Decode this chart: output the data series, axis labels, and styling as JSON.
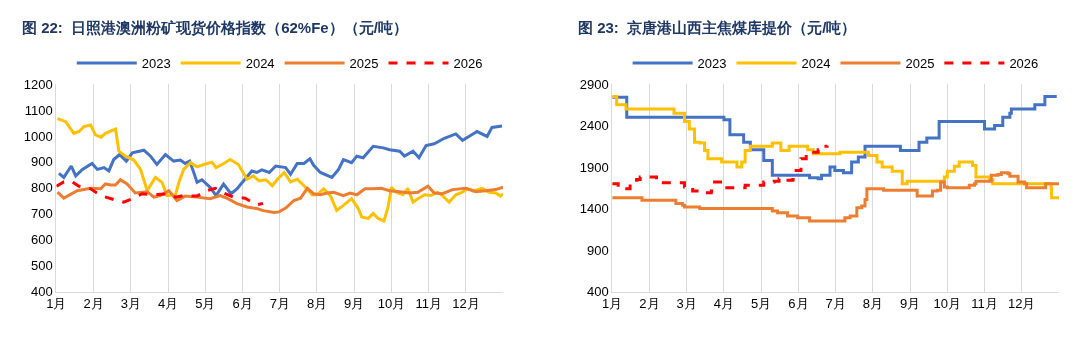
{
  "chart_data": [
    {
      "type": "line",
      "title": "图 22:  日照港澳洲粉矿现货价格指数（62%Fe）（元/吨）",
      "legend": "top",
      "grid": "x",
      "marker": "none",
      "line_style": "solid",
      "xlim": [
        1,
        13
      ],
      "xticks": [
        {
          "value": 1,
          "label": "1月"
        },
        {
          "value": 2,
          "label": "2月"
        },
        {
          "value": 3,
          "label": "3月"
        },
        {
          "value": 4,
          "label": "4月"
        },
        {
          "value": 5,
          "label": "5月"
        },
        {
          "value": 6,
          "label": "6月"
        },
        {
          "value": 7,
          "label": "7月"
        },
        {
          "value": 8,
          "label": "8月"
        },
        {
          "value": 9,
          "label": "9月"
        },
        {
          "value": 10,
          "label": "10月"
        },
        {
          "value": 11,
          "label": "11月"
        },
        {
          "value": 12,
          "label": "12月"
        }
      ],
      "ylim": [
        400,
        1200
      ],
      "yticks": [
        400,
        500,
        600,
        700,
        800,
        900,
        1000,
        1100,
        1200
      ],
      "series": [
        {
          "name": "2023",
          "color": "#4472c4",
          "x": [
            1.07,
            1.2,
            1.4,
            1.52,
            1.7,
            1.96,
            2.1,
            2.28,
            2.41,
            2.54,
            2.7,
            2.88,
            3.04,
            3.35,
            3.53,
            3.7,
            3.93,
            4.15,
            4.33,
            4.46,
            4.58,
            4.69,
            4.78,
            4.91,
            5.13,
            5.29,
            5.49,
            5.69,
            5.85,
            6.03,
            6.25,
            6.38,
            6.52,
            6.72,
            6.89,
            7.16,
            7.29,
            7.47,
            7.65,
            7.81,
            7.91,
            8.09,
            8.4,
            8.58,
            8.71,
            8.93,
            9.07,
            9.24,
            9.51,
            9.78,
            9.95,
            10.22,
            10.35,
            10.58,
            10.74,
            10.93,
            11.15,
            11.42,
            11.73,
            11.91,
            12.08,
            12.3,
            12.57,
            12.7,
            12.97
          ],
          "values": [
            856,
            840,
            884,
            846,
            871,
            894,
            871,
            878,
            865,
            909,
            928,
            903,
            935,
            945,
            922,
            890,
            928,
            903,
            907,
            894,
            903,
            859,
            821,
            831,
            802,
            770,
            814,
            777,
            796,
            827,
            865,
            859,
            869,
            859,
            884,
            878,
            852,
            894,
            894,
            912,
            887,
            859,
            840,
            871,
            909,
            897,
            922,
            916,
            960,
            954,
            947,
            941,
            922,
            941,
            916,
            963,
            970,
            991,
            1008,
            983,
            998,
            1017,
            998,
            1033,
            1038
          ]
        },
        {
          "name": "2024",
          "color": "#ffc000",
          "x": [
            1.03,
            1.25,
            1.47,
            1.61,
            1.74,
            1.92,
            2.05,
            2.2,
            2.32,
            2.59,
            2.68,
            2.86,
            3.08,
            3.26,
            3.44,
            3.66,
            3.84,
            3.97,
            4.2,
            4.29,
            4.42,
            4.6,
            4.78,
            4.96,
            5.18,
            5.29,
            5.45,
            5.67,
            5.89,
            6.12,
            6.29,
            6.45,
            6.63,
            6.8,
            6.94,
            7.12,
            7.29,
            7.47,
            7.69,
            7.87,
            8.0,
            8.18,
            8.36,
            8.53,
            8.71,
            8.93,
            9.11,
            9.2,
            9.38,
            9.51,
            9.64,
            9.8,
            9.91,
            10.0,
            10.13,
            10.31,
            10.44,
            10.58,
            10.71,
            10.89,
            11.06,
            11.24,
            11.37,
            11.55,
            11.73,
            11.91,
            12.04,
            12.21,
            12.44,
            12.62,
            12.8,
            12.93,
            13.0
          ],
          "values": [
            1067,
            1055,
            1010,
            1017,
            1036,
            1042,
            1004,
            995,
            1010,
            1026,
            941,
            922,
            907,
            871,
            789,
            840,
            821,
            770,
            773,
            821,
            871,
            897,
            881,
            890,
            899,
            878,
            890,
            909,
            890,
            833,
            846,
            827,
            831,
            808,
            833,
            859,
            823,
            833,
            802,
            773,
            773,
            796,
            770,
            713,
            732,
            758,
            720,
            688,
            682,
            701,
            682,
            672,
            726,
            802,
            783,
            773,
            798,
            745,
            758,
            773,
            770,
            783,
            770,
            745,
            773,
            783,
            796,
            789,
            798,
            783,
            780,
            768,
            777
          ]
        },
        {
          "name": "2025",
          "color": "#ed7d31",
          "x": [
            1.03,
            1.2,
            1.56,
            1.92,
            2.19,
            2.32,
            2.46,
            2.59,
            2.72,
            2.9,
            3.12,
            3.44,
            3.62,
            3.79,
            4.02,
            4.24,
            4.46,
            4.78,
            5.13,
            5.4,
            5.58,
            5.85,
            6.12,
            6.38,
            6.56,
            6.85,
            6.98,
            7.16,
            7.38,
            7.56,
            7.74,
            7.91,
            8.09,
            8.27,
            8.45,
            8.71,
            8.89,
            9.07,
            9.29,
            9.51,
            9.73,
            9.95,
            10.22,
            10.49,
            10.71,
            10.98,
            11.15,
            11.37,
            11.64,
            12.0,
            12.26,
            12.53,
            12.8,
            13.0
          ],
          "values": [
            783,
            760,
            789,
            798,
            796,
            815,
            811,
            811,
            831,
            815,
            780,
            785,
            764,
            770,
            789,
            751,
            768,
            764,
            758,
            770,
            760,
            739,
            726,
            720,
            712,
            705,
            707,
            722,
            751,
            760,
            798,
            777,
            773,
            780,
            783,
            770,
            780,
            773,
            796,
            796,
            798,
            789,
            785,
            780,
            783,
            806,
            780,
            777,
            793,
            798,
            785,
            789,
            793,
            802
          ]
        },
        {
          "name": "2026",
          "color": "#ff0000",
          "line_style": "dashed",
          "x": [
            1.0,
            1.2,
            1.38,
            1.61,
            1.92,
            2.19,
            2.54,
            2.81,
            3.08,
            3.3,
            3.62,
            3.97,
            4.2,
            4.42,
            4.78,
            5.04,
            5.27,
            5.49,
            5.76,
            6.07,
            6.25,
            6.4,
            6.55
          ],
          "values": [
            806,
            823,
            827,
            806,
            796,
            770,
            755,
            745,
            760,
            777,
            773,
            777,
            764,
            770,
            768,
            789,
            798,
            780,
            764,
            760,
            745,
            735,
            740
          ]
        }
      ]
    },
    {
      "type": "step",
      "title": "图 23:  京唐港山西主焦煤库提价（元/吨）",
      "legend": "top",
      "grid": "x",
      "marker": "none",
      "line_style": "solid",
      "xlim": [
        1,
        13
      ],
      "xticks": [
        {
          "value": 1,
          "label": "1月"
        },
        {
          "value": 2,
          "label": "2月"
        },
        {
          "value": 3,
          "label": "3月"
        },
        {
          "value": 4,
          "label": "4月"
        },
        {
          "value": 5,
          "label": "5月"
        },
        {
          "value": 6,
          "label": "6月"
        },
        {
          "value": 7,
          "label": "7月"
        },
        {
          "value": 8,
          "label": "8月"
        },
        {
          "value": 9,
          "label": "9月"
        },
        {
          "value": 10,
          "label": "10月"
        },
        {
          "value": 11,
          "label": "11月"
        },
        {
          "value": 12,
          "label": "12月"
        }
      ],
      "ylim": [
        400,
        2900
      ],
      "yticks": [
        400,
        900,
        1400,
        1900,
        2400,
        2900
      ],
      "series": [
        {
          "name": "2023",
          "color": "#4472c4",
          "x": [
            1.0,
            1.39,
            4.0,
            4.16,
            4.53,
            4.71,
            5.07,
            5.3,
            6.3,
            6.53,
            6.62,
            6.85,
            6.98,
            7.21,
            7.43,
            7.61,
            7.79,
            8.74,
            9.24,
            9.45,
            9.78,
            11.0,
            11.27,
            11.49,
            11.68,
            11.72,
            12.35,
            12.62,
            12.94
          ],
          "values": [
            2740,
            2500,
            2470,
            2290,
            2200,
            2110,
            1980,
            1800,
            1770,
            1760,
            1800,
            1900,
            1860,
            1830,
            1960,
            2020,
            2150,
            2100,
            2200,
            2250,
            2450,
            2360,
            2400,
            2500,
            2550,
            2600,
            2650,
            2750,
            2750
          ]
        },
        {
          "name": "2024",
          "color": "#ffc000",
          "x": [
            1.0,
            1.12,
            1.37,
            2.66,
            2.94,
            3.07,
            3.21,
            3.35,
            3.48,
            3.57,
            3.94,
            4.35,
            4.48,
            4.57,
            4.71,
            5.3,
            5.53,
            5.75,
            6.25,
            6.4,
            7.12,
            7.88,
            8.11,
            8.25,
            8.52,
            8.79,
            8.92,
            9.92,
            10.0,
            10.19,
            10.32,
            10.68,
            10.77,
            11.13,
            11.22,
            12.79,
            12.8,
            13.0
          ],
          "values": [
            2750,
            2650,
            2600,
            2550,
            2450,
            2360,
            2200,
            2190,
            2100,
            2000,
            1960,
            1900,
            1960,
            2100,
            2150,
            2190,
            2100,
            2150,
            2110,
            2060,
            2080,
            2040,
            1960,
            1900,
            1850,
            1700,
            1730,
            1780,
            1850,
            1910,
            1960,
            1920,
            1780,
            1750,
            1700,
            1640,
            1530,
            1530
          ]
        },
        {
          "name": "2025",
          "color": "#ed7d31",
          "x": [
            1.0,
            1.8,
            2.71,
            2.89,
            2.94,
            3.35,
            5.3,
            5.44,
            5.71,
            5.98,
            6.3,
            7.25,
            7.39,
            7.57,
            7.7,
            7.79,
            7.84,
            8.29,
            9.19,
            9.6,
            9.73,
            9.82,
            9.92,
            10.0,
            10.59,
            10.73,
            10.77,
            11.18,
            11.36,
            11.45,
            11.63,
            11.68,
            11.9,
            12.08,
            12.13,
            12.64,
            13.0
          ],
          "values": [
            1530,
            1500,
            1460,
            1440,
            1420,
            1400,
            1370,
            1350,
            1310,
            1290,
            1250,
            1290,
            1310,
            1410,
            1430,
            1510,
            1640,
            1620,
            1550,
            1610,
            1620,
            1720,
            1660,
            1650,
            1680,
            1700,
            1730,
            1800,
            1810,
            1830,
            1820,
            1790,
            1720,
            1700,
            1650,
            1700,
            1700
          ]
        },
        {
          "name": "2026",
          "color": "#ff0000",
          "line_style": "dashed",
          "x": [
            1.0,
            1.16,
            1.48,
            1.66,
            1.75,
            2.19,
            2.94,
            3.16,
            3.39,
            3.66,
            3.75,
            4.03,
            4.57,
            4.94,
            5.07,
            5.35,
            5.48,
            5.66,
            5.85,
            5.94,
            6.07,
            6.21,
            6.53,
            6.62,
            6.77
          ],
          "values": [
            1700,
            1640,
            1740,
            1750,
            1780,
            1710,
            1660,
            1610,
            1590,
            1610,
            1720,
            1650,
            1680,
            1680,
            1720,
            1730,
            1760,
            1740,
            1750,
            1860,
            2000,
            2080,
            2110,
            2150,
            2160
          ]
        }
      ]
    }
  ]
}
